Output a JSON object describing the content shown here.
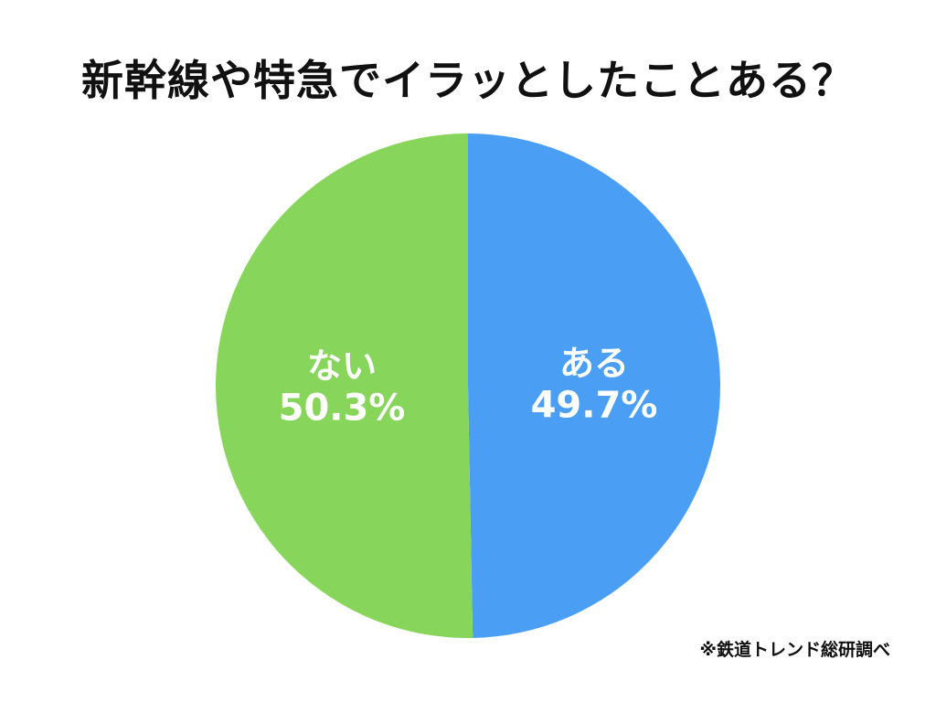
{
  "title": "新幹線や特急でイラッとしたことある？",
  "source": "※鉄道トレンド総研調べ",
  "chart_data": {
    "type": "pie",
    "title": "新幹線や特急でイラッとしたことある？",
    "slices": [
      {
        "label": "ある",
        "value": 49.7,
        "value_label": "49.7%",
        "color": "#4a9ff5"
      },
      {
        "label": "ない",
        "value": 50.3,
        "value_label": "50.3%",
        "color": "#87d55a"
      }
    ],
    "start_angle_deg": 0,
    "direction": "clockwise",
    "legend": "none"
  }
}
